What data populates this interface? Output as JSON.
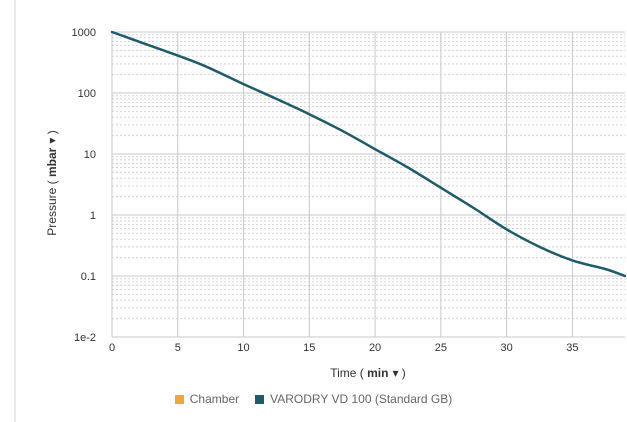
{
  "chart_data": {
    "type": "line",
    "xlabel": "Time",
    "xunit": "min",
    "ylabel": "Pressure",
    "yunit": "mbar",
    "unit_dropdown_glyph": "▾",
    "y_scale": "log",
    "xlim": [
      0,
      39
    ],
    "ylim": [
      0.01,
      1000
    ],
    "x_ticks": [
      0,
      5,
      10,
      15,
      20,
      25,
      30,
      35
    ],
    "y_ticks": [
      {
        "value": 1000,
        "label": "1000"
      },
      {
        "value": 100,
        "label": "100"
      },
      {
        "value": 10,
        "label": "10"
      },
      {
        "value": 1,
        "label": "1"
      },
      {
        "value": 0.1,
        "label": "0.1"
      },
      {
        "value": 0.01,
        "label": "1e-2"
      }
    ],
    "grid": true,
    "legend_position": "bottom-center",
    "series": [
      {
        "name": "Chamber",
        "color": "#f0a830",
        "x": [],
        "y": []
      },
      {
        "name": "VARODRY VD 100 (Standard GB)",
        "color": "#1e5b6b",
        "x": [
          0,
          2,
          4.5,
          7,
          10,
          12.5,
          15,
          17.5,
          20,
          22.5,
          25,
          27.5,
          30,
          32.5,
          35,
          37.5,
          39
        ],
        "y": [
          1000,
          700,
          450,
          280,
          140,
          80,
          45,
          24,
          12,
          6,
          2.8,
          1.3,
          0.58,
          0.3,
          0.18,
          0.13,
          0.1
        ]
      }
    ]
  }
}
